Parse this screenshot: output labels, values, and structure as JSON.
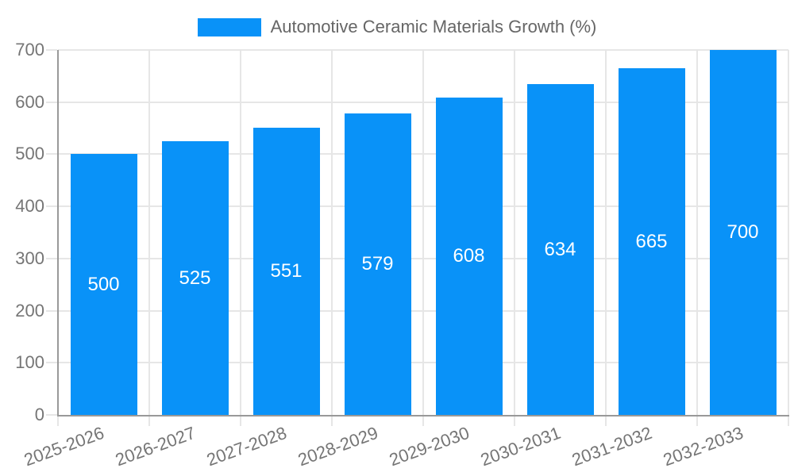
{
  "legend": {
    "label": "Automotive Ceramic Materials Growth (%)"
  },
  "chart_data": {
    "type": "bar",
    "title": "Automotive Ceramic Materials Growth (%)",
    "categories": [
      "2025-2026",
      "2026-2027",
      "2027-2028",
      "2028-2029",
      "2029-2030",
      "2030-2031",
      "2031-2032",
      "2032-2033"
    ],
    "values": [
      500,
      525,
      551,
      579,
      608,
      634,
      665,
      700
    ],
    "series_name": "Automotive Ceramic Materials Growth (%)",
    "xlabel": "",
    "ylabel": "",
    "ylim": [
      0,
      700
    ],
    "yticks": [
      0,
      100,
      200,
      300,
      400,
      500,
      600,
      700
    ],
    "grid": true,
    "legend_position": "top-center",
    "value_labels": "inside-middle",
    "x_tick_rotation_deg": -20,
    "colors": {
      "bar": "#0992f8",
      "value_label_text": "#ffffff",
      "axis_text": "#757575",
      "legend_text": "#666666",
      "gridline": "#e6e6e6",
      "axis_line": "#999999",
      "background": "#ffffff"
    }
  }
}
